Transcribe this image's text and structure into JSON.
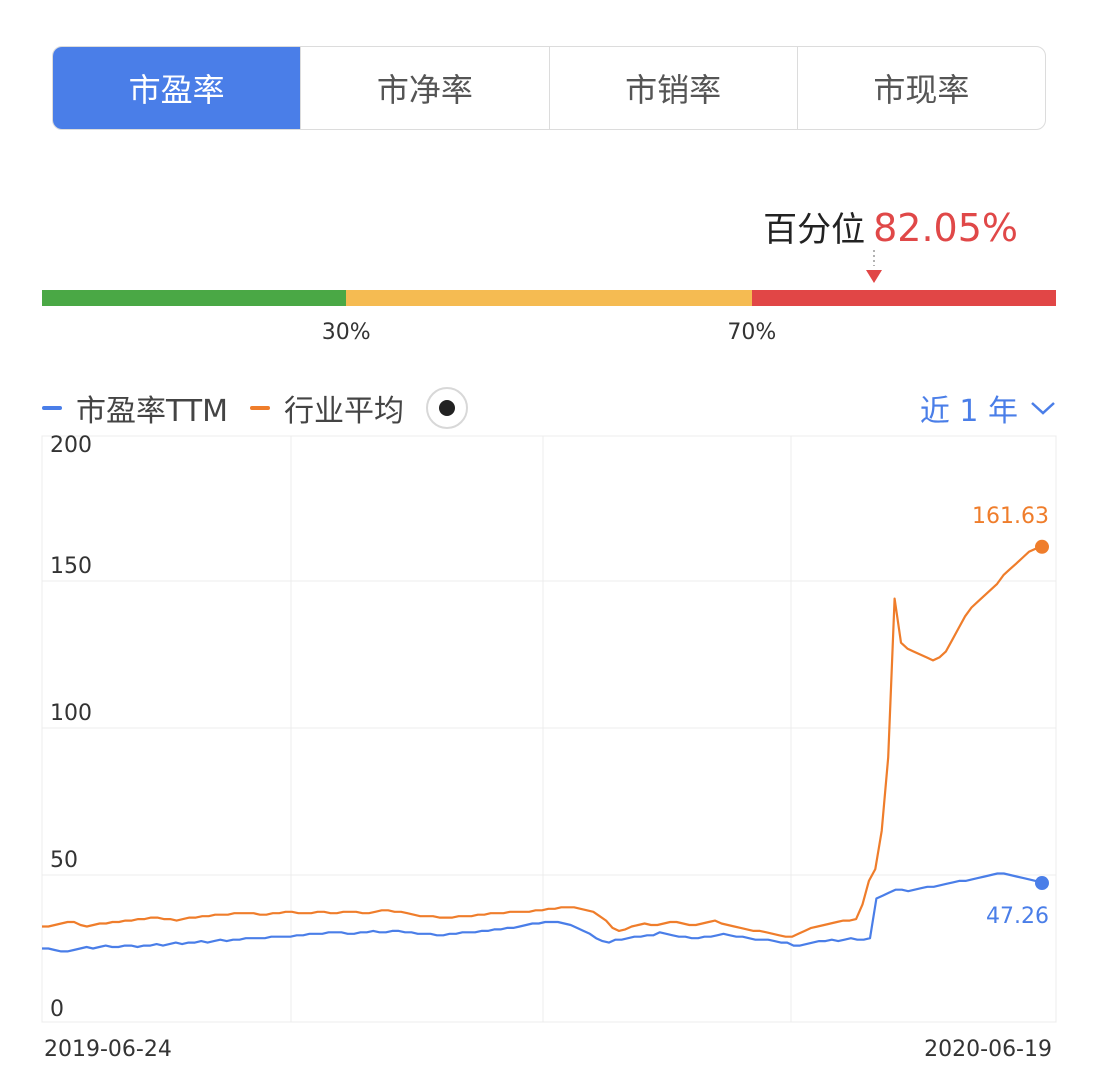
{
  "tabs": [
    {
      "label": "市盈率",
      "active": true
    },
    {
      "label": "市净率",
      "active": false
    },
    {
      "label": "市销率",
      "active": false
    },
    {
      "label": "市现率",
      "active": false
    }
  ],
  "percentile": {
    "label": "百分位",
    "value": "82.05%",
    "fraction": 0.8205
  },
  "scale": {
    "marks": [
      "30%",
      "70%"
    ],
    "boundaries": [
      0.3,
      0.7
    ],
    "colors": [
      "#4aa845",
      "#f5bb52",
      "#e14646"
    ]
  },
  "legend": {
    "items": [
      {
        "label": "市盈率TTM",
        "color": "#4a7ee8"
      },
      {
        "label": "行业平均",
        "color": "#ef7d2b"
      }
    ],
    "range_label": "近 1 年"
  },
  "chart_data": {
    "type": "line",
    "x_start_label": "2019-06-24",
    "x_end_label": "2020-06-19",
    "yticks": [
      "200",
      "150",
      "100",
      "50",
      "0"
    ],
    "ylim": [
      0,
      200
    ],
    "grid": true,
    "series": [
      {
        "name": "市盈率TTM",
        "color": "#4a7ee8",
        "end_label": "47.26",
        "values": [
          25,
          25,
          24.5,
          24,
          24,
          24.5,
          25,
          25.5,
          25,
          25.5,
          26,
          25.5,
          25.5,
          26,
          26,
          25.5,
          26,
          26,
          26.5,
          26,
          26.5,
          27,
          26.5,
          27,
          27,
          27.5,
          27,
          27.5,
          28,
          27.5,
          28,
          28,
          28.5,
          28.5,
          28.5,
          28.5,
          29,
          29,
          29,
          29,
          29.5,
          29.5,
          30,
          30,
          30,
          30.5,
          30.5,
          30.5,
          30,
          30,
          30.5,
          30.5,
          31,
          30.5,
          30.5,
          31,
          31,
          30.5,
          30.5,
          30,
          30,
          30,
          29.5,
          29.5,
          30,
          30,
          30.5,
          30.5,
          30.5,
          31,
          31,
          31.5,
          31.5,
          32,
          32,
          32.5,
          33,
          33.5,
          33.5,
          34,
          34,
          34,
          33.5,
          33,
          32,
          31,
          30,
          28.5,
          27.5,
          27,
          28,
          28,
          28.5,
          29,
          29,
          29.5,
          29.5,
          30.5,
          30,
          29.5,
          29,
          29,
          28.5,
          28.5,
          29,
          29,
          29.5,
          30,
          29.5,
          29,
          29,
          28.5,
          28,
          28,
          28,
          27.5,
          27,
          27,
          26,
          26,
          26.5,
          27,
          27.5,
          27.5,
          28,
          27.5,
          28,
          28.5,
          28,
          28,
          28.5,
          42,
          43,
          44,
          45,
          45,
          44.5,
          45,
          45.5,
          46,
          46,
          46.5,
          47,
          47.5,
          48,
          48,
          48.5,
          49,
          49.5,
          50,
          50.5,
          50.5,
          50,
          49.5,
          49,
          48.5,
          48,
          47.26
        ]
      },
      {
        "name": "行业平均",
        "color": "#ef7d2b",
        "end_label": "161.63",
        "values": [
          32.5,
          32.5,
          33,
          33.5,
          34,
          34,
          33,
          32.5,
          33,
          33.5,
          33.5,
          34,
          34,
          34.5,
          34.5,
          35,
          35,
          35.5,
          35.5,
          35,
          35,
          34.5,
          35,
          35.5,
          35.5,
          36,
          36,
          36.5,
          36.5,
          36.5,
          37,
          37,
          37,
          37,
          36.5,
          36.5,
          37,
          37,
          37.5,
          37.5,
          37,
          37,
          37,
          37.5,
          37.5,
          37,
          37,
          37.5,
          37.5,
          37.5,
          37,
          37,
          37.5,
          38,
          38,
          37.5,
          37.5,
          37,
          36.5,
          36,
          36,
          36,
          35.5,
          35.5,
          35.5,
          36,
          36,
          36,
          36.5,
          36.5,
          37,
          37,
          37,
          37.5,
          37.5,
          37.5,
          37.5,
          38,
          38,
          38.5,
          38.5,
          39,
          39,
          39,
          38.5,
          38,
          37.5,
          36,
          34.5,
          32,
          31,
          31.5,
          32.5,
          33,
          33.5,
          33,
          33,
          33.5,
          34,
          34,
          33.5,
          33,
          33,
          33.5,
          34,
          34.5,
          33.5,
          33,
          32.5,
          32,
          31.5,
          31,
          31,
          30.5,
          30,
          29.5,
          29,
          29,
          30,
          31,
          32,
          32.5,
          33,
          33.5,
          34,
          34.5,
          34.5,
          35,
          40,
          48,
          52,
          65,
          90,
          144,
          129,
          127,
          126,
          125,
          124,
          123,
          124,
          126,
          130,
          134,
          138,
          141,
          143,
          145,
          147,
          149,
          152,
          154,
          156,
          158,
          160,
          161,
          161.63
        ]
      }
    ]
  }
}
